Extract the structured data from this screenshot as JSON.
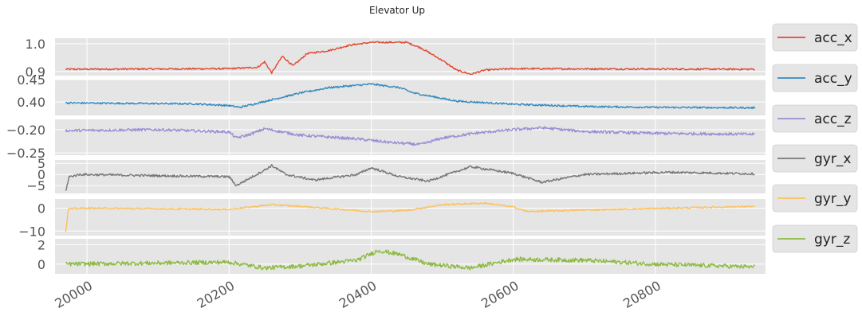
{
  "chart_data": {
    "type": "line",
    "title": "Elevator Up",
    "x_range": [
      19955,
      20955
    ],
    "x_ticks": [
      20000,
      20200,
      20400,
      20600,
      20800
    ],
    "x_tick_labels": [
      "20000",
      "20200",
      "20400",
      "20600",
      "20800"
    ],
    "x_start": 19970,
    "x_end": 20940,
    "grid": true,
    "legend_placement": "right of each subplot",
    "subplots": [
      {
        "series": "acc_x",
        "color": "#E24A33",
        "ylim": [
          0.885,
          1.02
        ],
        "yticks": [
          0.9,
          1.0
        ],
        "ytick_labels": [
          "0.9",
          "1.0"
        ],
        "baseline": 0.91,
        "noise": 0.003,
        "keypoints": [
          [
            19970,
            0.908
          ],
          [
            20200,
            0.91
          ],
          [
            20240,
            0.915
          ],
          [
            20250,
            0.935
          ],
          [
            20260,
            0.895
          ],
          [
            20275,
            0.955
          ],
          [
            20290,
            0.92
          ],
          [
            20310,
            0.965
          ],
          [
            20340,
            0.975
          ],
          [
            20370,
            0.995
          ],
          [
            20400,
            1.005
          ],
          [
            20450,
            1.005
          ],
          [
            20470,
            0.985
          ],
          [
            20500,
            0.94
          ],
          [
            20520,
            0.905
          ],
          [
            20540,
            0.89
          ],
          [
            20560,
            0.905
          ],
          [
            20600,
            0.91
          ],
          [
            20940,
            0.908
          ]
        ]
      },
      {
        "series": "acc_y",
        "color": "#348ABD",
        "ylim": [
          0.37,
          0.45
        ],
        "yticks": [
          0.4,
          0.45
        ],
        "ytick_labels": [
          "0.40",
          "0.45"
        ],
        "baseline": 0.398,
        "noise": 0.002,
        "keypoints": [
          [
            19970,
            0.398
          ],
          [
            20150,
            0.396
          ],
          [
            20200,
            0.392
          ],
          [
            20215,
            0.388
          ],
          [
            20260,
            0.405
          ],
          [
            20300,
            0.42
          ],
          [
            20340,
            0.432
          ],
          [
            20400,
            0.44
          ],
          [
            20440,
            0.432
          ],
          [
            20460,
            0.42
          ],
          [
            20520,
            0.402
          ],
          [
            20600,
            0.395
          ],
          [
            20700,
            0.39
          ],
          [
            20800,
            0.388
          ],
          [
            20940,
            0.387
          ]
        ]
      },
      {
        "series": "acc_z",
        "color": "#988ED5",
        "ylim": [
          -0.255,
          -0.178
        ],
        "yticks": [
          -0.2,
          -0.25
        ],
        "ytick_labels": [
          "−0.20",
          "−0.25"
        ],
        "baseline": -0.202,
        "noise": 0.003,
        "keypoints": [
          [
            19970,
            -0.202
          ],
          [
            20100,
            -0.2
          ],
          [
            20200,
            -0.205
          ],
          [
            20210,
            -0.218
          ],
          [
            20230,
            -0.21
          ],
          [
            20250,
            -0.198
          ],
          [
            20300,
            -0.212
          ],
          [
            20380,
            -0.22
          ],
          [
            20430,
            -0.228
          ],
          [
            20470,
            -0.232
          ],
          [
            20500,
            -0.218
          ],
          [
            20550,
            -0.207
          ],
          [
            20600,
            -0.2
          ],
          [
            20640,
            -0.196
          ],
          [
            20700,
            -0.204
          ],
          [
            20800,
            -0.208
          ],
          [
            20940,
            -0.21
          ]
        ]
      },
      {
        "series": "gyr_x",
        "color": "#777777",
        "ylim": [
          -8.5,
          6.5
        ],
        "yticks": [
          5,
          0,
          -5
        ],
        "ytick_labels": [
          "5",
          "0",
          "−5"
        ],
        "baseline": 0.0,
        "noise": 0.5,
        "keypoints": [
          [
            19970,
            -7.5
          ],
          [
            19975,
            -1.0
          ],
          [
            19990,
            0.0
          ],
          [
            20200,
            -1.0
          ],
          [
            20210,
            -5.0
          ],
          [
            20250,
            2.0
          ],
          [
            20260,
            4.0
          ],
          [
            20280,
            0.0
          ],
          [
            20320,
            -2.5
          ],
          [
            20380,
            0.0
          ],
          [
            20400,
            3.0
          ],
          [
            20440,
            -1.0
          ],
          [
            20480,
            -3.0
          ],
          [
            20540,
            3.5
          ],
          [
            20600,
            0.5
          ],
          [
            20640,
            -3.5
          ],
          [
            20700,
            0.0
          ],
          [
            20820,
            1.0
          ],
          [
            20940,
            0.3
          ]
        ]
      },
      {
        "series": "gyr_y",
        "color": "#FBC15E",
        "ylim": [
          -12,
          4
        ],
        "yticks": [
          0,
          -10
        ],
        "ytick_labels": [
          "0",
          "−10"
        ],
        "baseline": 0.0,
        "noise": 0.35,
        "keypoints": [
          [
            19970,
            -10.5
          ],
          [
            19974,
            -0.3
          ],
          [
            20000,
            0.0
          ],
          [
            20200,
            -0.5
          ],
          [
            20260,
            1.5
          ],
          [
            20300,
            0.8
          ],
          [
            20400,
            -1.5
          ],
          [
            20450,
            -1.0
          ],
          [
            20500,
            1.5
          ],
          [
            20560,
            2.2
          ],
          [
            20600,
            0.5
          ],
          [
            20620,
            -1.5
          ],
          [
            20700,
            -0.8
          ],
          [
            20940,
            0.8
          ]
        ]
      },
      {
        "series": "gyr_z",
        "color": "#8EBA42",
        "ylim": [
          -1.0,
          2.6
        ],
        "yticks": [
          2,
          0
        ],
        "ytick_labels": [
          "2",
          "0"
        ],
        "baseline": 0.0,
        "noise": 0.22,
        "keypoints": [
          [
            19970,
            0.0
          ],
          [
            20200,
            0.2
          ],
          [
            20250,
            -0.4
          ],
          [
            20300,
            -0.2
          ],
          [
            20380,
            0.4
          ],
          [
            20410,
            1.4
          ],
          [
            20440,
            1.0
          ],
          [
            20480,
            0.0
          ],
          [
            20540,
            -0.4
          ],
          [
            20600,
            0.5
          ],
          [
            20700,
            0.4
          ],
          [
            20800,
            0.0
          ],
          [
            20940,
            -0.3
          ]
        ]
      }
    ]
  }
}
